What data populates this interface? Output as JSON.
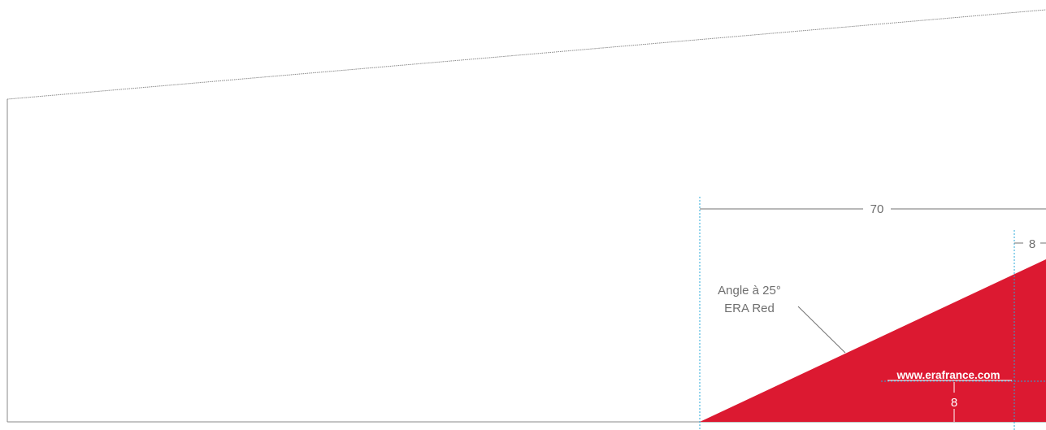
{
  "diagram": {
    "dimension_top": "70",
    "dimension_right": "8",
    "dimension_inner": "8",
    "annotation": {
      "line1": "Angle à 25°",
      "line2": "ERA Red"
    },
    "website": "www.erafrance.com",
    "colors": {
      "era_red": "#dc1931",
      "guide_blue": "#2aa8d8",
      "outline": "#8a8a8a",
      "dimension_line": "#707070"
    }
  }
}
